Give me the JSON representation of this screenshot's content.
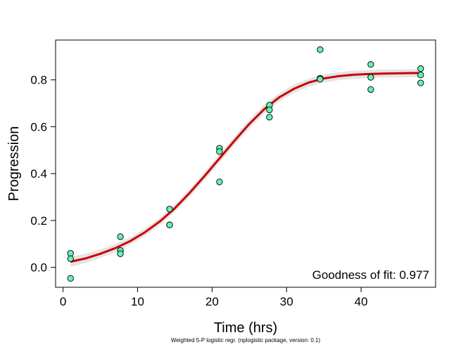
{
  "chart_data": {
    "type": "scatter",
    "title": "",
    "xlabel": "Time (hrs)",
    "ylabel": "Progression",
    "xlim": [
      -1,
      50
    ],
    "ylim": [
      -0.085,
      0.97
    ],
    "xticks": [
      0,
      10,
      20,
      30,
      40
    ],
    "yticks": [
      0.0,
      0.2,
      0.4,
      0.6,
      0.8
    ],
    "ytick_labels": [
      "0.0",
      "0.2",
      "0.4",
      "0.6",
      "0.8"
    ],
    "grid": false,
    "annotation": "Goodness of fit: 0.977",
    "footnote": "Weighted 5-P logistic regr. (nplogistic package, version: 0.1)",
    "points": {
      "color": "#66f0b4",
      "x": [
        1,
        1,
        1,
        7.7,
        7.7,
        7.7,
        14.3,
        14.3,
        14.3,
        21,
        21,
        21,
        27.7,
        27.7,
        27.7,
        34.5,
        34.5,
        34.5,
        41.3,
        41.3,
        41.3,
        48,
        48,
        48
      ],
      "y": [
        0.06,
        0.037,
        -0.047,
        0.131,
        0.072,
        0.058,
        0.249,
        0.181,
        0.181,
        0.508,
        0.494,
        0.365,
        0.692,
        0.672,
        0.641,
        0.929,
        0.807,
        0.803,
        0.866,
        0.811,
        0.759,
        0.848,
        0.821,
        0.787
      ]
    },
    "fit": {
      "color": "#cc0000",
      "band_color": "#e4e4e4",
      "x": [
        1,
        3,
        5,
        7,
        9,
        11,
        13,
        15,
        17,
        19,
        21,
        23,
        25,
        27,
        29,
        31,
        33,
        35,
        37,
        39,
        41,
        43,
        45,
        47,
        48
      ],
      "y": [
        0.024,
        0.038,
        0.058,
        0.082,
        0.112,
        0.15,
        0.196,
        0.252,
        0.318,
        0.39,
        0.465,
        0.54,
        0.612,
        0.675,
        0.725,
        0.762,
        0.789,
        0.806,
        0.816,
        0.822,
        0.825,
        0.827,
        0.828,
        0.829,
        0.829
      ],
      "band_halfwidth": [
        0.022,
        0.02,
        0.018,
        0.017,
        0.016,
        0.016,
        0.016,
        0.016,
        0.017,
        0.018,
        0.018,
        0.018,
        0.018,
        0.018,
        0.018,
        0.018,
        0.017,
        0.017,
        0.017,
        0.017,
        0.017,
        0.017,
        0.017,
        0.017,
        0.017
      ]
    }
  }
}
